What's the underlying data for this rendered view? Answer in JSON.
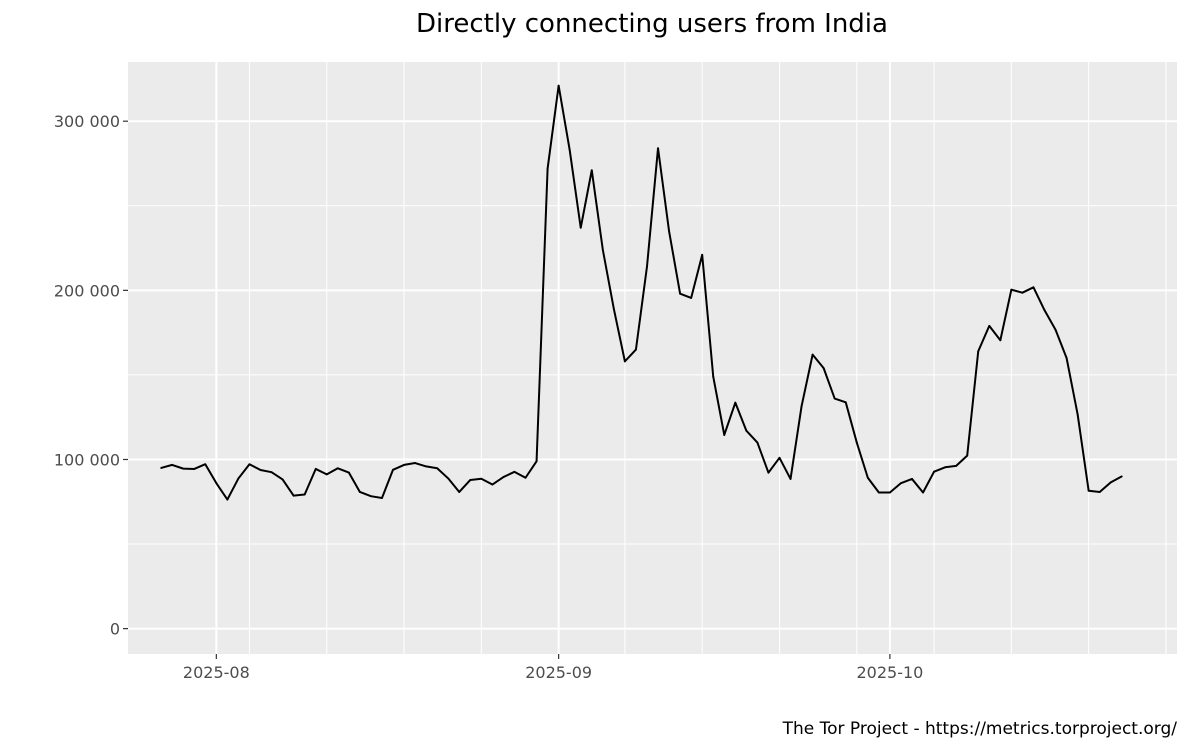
{
  "chart_data": {
    "type": "line",
    "title": "Directly connecting users from India",
    "caption": "The Tor Project - https://metrics.torproject.org/",
    "xlabel": "",
    "ylabel": "",
    "x_start": "2025-07-27",
    "x_end": "2025-10-24",
    "x_range": [
      "2025-07-24",
      "2025-10-27"
    ],
    "ylim": [
      -15000,
      335000
    ],
    "x_ticks": [
      {
        "date": "2025-08-01",
        "label": "2025-08"
      },
      {
        "date": "2025-09-01",
        "label": "2025-09"
      },
      {
        "date": "2025-10-01",
        "label": "2025-10"
      }
    ],
    "x_minor_ticks": [
      "2025-08-04",
      "2025-08-11",
      "2025-08-18",
      "2025-08-25",
      "2025-09-07",
      "2025-09-14",
      "2025-09-21",
      "2025-09-28",
      "2025-10-05",
      "2025-10-12",
      "2025-10-19",
      "2025-10-26"
    ],
    "y_ticks": [
      {
        "value": 0,
        "label": "0"
      },
      {
        "value": 100000,
        "label": "100 000"
      },
      {
        "value": 200000,
        "label": "200 000"
      },
      {
        "value": 300000,
        "label": "300 000"
      }
    ],
    "y_minor_ticks": [
      50000,
      150000,
      250000
    ],
    "grid": true,
    "colors": {
      "panel": "#ebebeb",
      "grid": "#ffffff",
      "line": "#000000"
    },
    "series": [
      {
        "values": [
          95000,
          96800,
          94600,
          94400,
          97200,
          86000,
          76300,
          88800,
          97200,
          93800,
          92500,
          88200,
          78600,
          79300,
          94400,
          91200,
          94800,
          92300,
          80800,
          78300,
          77200,
          93900,
          96800,
          97900,
          95900,
          94800,
          88800,
          80800,
          87900,
          88600,
          85200,
          89600,
          92700,
          89200,
          98900,
          272000,
          321000,
          283000,
          237000,
          271000,
          224000,
          189000,
          158000,
          165000,
          214000,
          284000,
          235000,
          198000,
          195500,
          221000,
          149000,
          114500,
          133600,
          117000,
          110000,
          92200,
          101000,
          88500,
          131500,
          162000,
          154000,
          136000,
          133800,
          110000,
          89200,
          80500,
          80500,
          86000,
          88500,
          80500,
          92800,
          95400,
          96200,
          102300,
          164000,
          179000,
          170500,
          200400,
          198600,
          201800,
          188300,
          176700,
          160000,
          126700,
          81500,
          80800,
          86500,
          90000
        ]
      }
    ]
  }
}
